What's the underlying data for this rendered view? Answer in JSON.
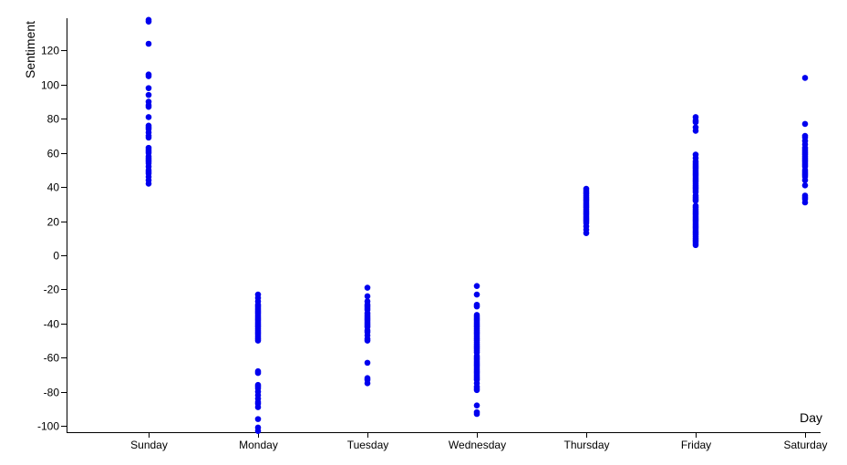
{
  "chart_data": {
    "type": "scatter",
    "title": "",
    "xlabel": "Day",
    "ylabel": "Sentiment",
    "grid": false,
    "legend": "none",
    "point_color": "#0000ee",
    "categories": [
      "Sunday",
      "Monday",
      "Tuesday",
      "Wednesday",
      "Thursday",
      "Friday",
      "Saturday"
    ],
    "ylim": [
      -102,
      138
    ],
    "yticks": [
      -100,
      -80,
      -60,
      -40,
      -20,
      0,
      20,
      40,
      60,
      80,
      100,
      120
    ],
    "points": {
      "Sunday": [
        138,
        137,
        124,
        106,
        105,
        98,
        94,
        90,
        88,
        87,
        81,
        76,
        75,
        74,
        72,
        70,
        69,
        63,
        62,
        61,
        60,
        58,
        57,
        56,
        55,
        54,
        52,
        50,
        49,
        48,
        46,
        44,
        42
      ],
      "Monday": [
        -23,
        -25,
        -27,
        -29,
        -30,
        -31,
        -32,
        -33,
        -34,
        -35,
        -36,
        -37,
        -38,
        -39,
        -40,
        -41,
        -42,
        -43,
        -44,
        -45,
        -46,
        -47,
        -48,
        -49,
        -50,
        -68,
        -69,
        -76,
        -77,
        -78,
        -80,
        -82,
        -84,
        -86,
        -87,
        -89,
        -96,
        -101,
        -103
      ],
      "Tuesday": [
        -19,
        -24,
        -27,
        -29,
        -30,
        -31,
        -32,
        -34,
        -35,
        -36,
        -37,
        -38,
        -39,
        -40,
        -41,
        -42,
        -44,
        -45,
        -47,
        -49,
        -50,
        -63,
        -72,
        -73,
        -75
      ],
      "Wednesday": [
        -18,
        -23,
        -29,
        -30,
        -35,
        -36,
        -37,
        -38,
        -39,
        -40,
        -41,
        -42,
        -43,
        -44,
        -45,
        -46,
        -47,
        -48,
        -49,
        -50,
        -51,
        -52,
        -53,
        -54,
        -55,
        -56,
        -57,
        -59,
        -60,
        -61,
        -62,
        -63,
        -64,
        -65,
        -66,
        -67,
        -68,
        -69,
        -70,
        -71,
        -72,
        -73,
        -75,
        -77,
        -78,
        -79,
        -88,
        -92,
        -93
      ],
      "Thursday": [
        39,
        38,
        37,
        36,
        35,
        34,
        33,
        32,
        31,
        30,
        29,
        28,
        27,
        26,
        25,
        24,
        23,
        22,
        21,
        20,
        19,
        17,
        15,
        13
      ],
      "Friday": [
        81,
        79,
        78,
        75,
        73,
        59,
        57,
        55,
        54,
        53,
        52,
        51,
        50,
        49,
        48,
        47,
        46,
        45,
        44,
        43,
        42,
        41,
        40,
        39,
        38,
        37,
        35,
        34,
        33,
        32,
        29,
        28,
        27,
        26,
        25,
        24,
        23,
        22,
        21,
        20,
        19,
        18,
        17,
        16,
        15,
        14,
        13,
        12,
        11,
        10,
        9,
        8,
        7,
        6
      ],
      "Saturday": [
        104,
        77,
        70,
        69,
        67,
        65,
        63,
        62,
        61,
        60,
        59,
        58,
        57,
        56,
        55,
        54,
        53,
        52,
        50,
        49,
        48,
        47,
        46,
        44,
        41,
        35,
        34,
        33,
        31
      ]
    }
  }
}
